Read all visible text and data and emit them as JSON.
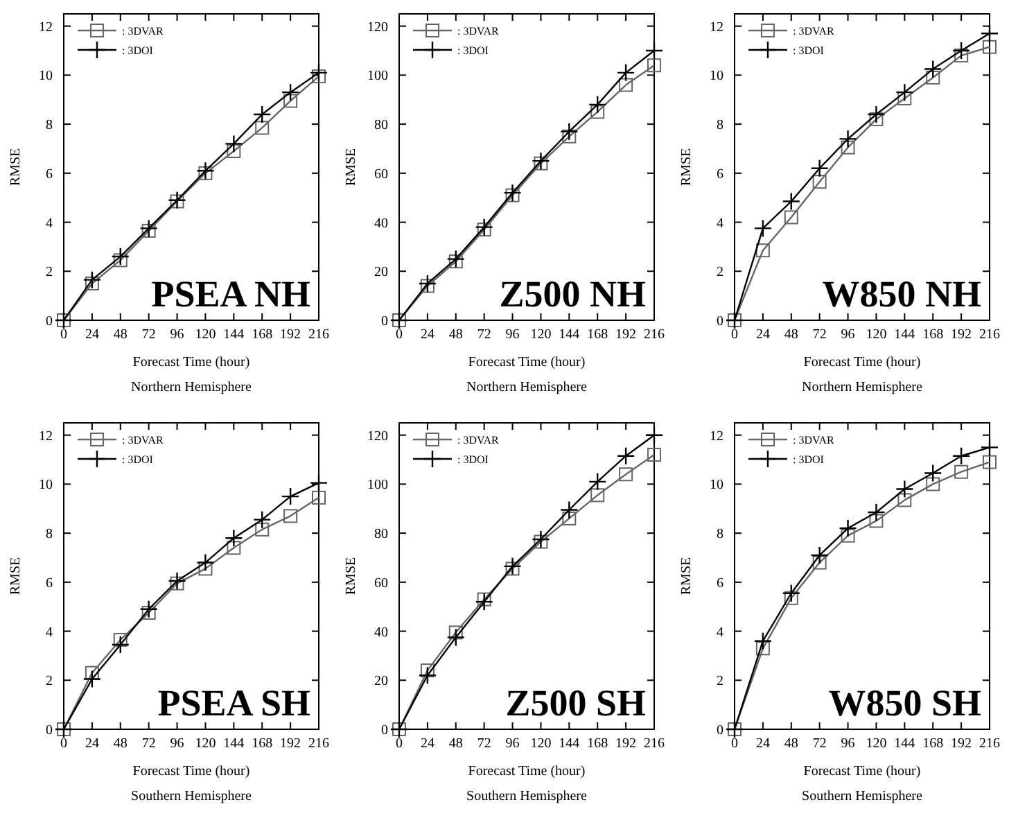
{
  "chart_data": [
    {
      "type": "line",
      "title": "PSEA NH",
      "xlabel": "Forecast Time (hour)",
      "ylabel": "RMSE",
      "annotations": [
        "Northern Hemisphere"
      ],
      "x": [
        0,
        24,
        48,
        72,
        96,
        120,
        144,
        168,
        192,
        216
      ],
      "xlim": [
        0,
        216
      ],
      "xticks": [
        0,
        24,
        48,
        72,
        96,
        120,
        144,
        168,
        192,
        216
      ],
      "ylim": [
        0,
        12.5
      ],
      "yticks": [
        0,
        2,
        4,
        6,
        8,
        10,
        12
      ],
      "grid": false,
      "legend": "top left",
      "line_style": "solid",
      "series": [
        {
          "name": ": 3DVAR",
          "color": "#666666",
          "marker": "square",
          "values": [
            0,
            1.5,
            2.45,
            3.65,
            4.85,
            6.0,
            6.9,
            7.85,
            8.95,
            9.95
          ]
        },
        {
          "name": ": 3DOI",
          "color": "#000000",
          "marker": "cross",
          "values": [
            0,
            1.65,
            2.6,
            3.75,
            4.9,
            6.1,
            7.2,
            8.4,
            9.3,
            10.1
          ]
        }
      ]
    },
    {
      "type": "line",
      "title": "Z500 NH",
      "xlabel": "Forecast Time (hour)",
      "ylabel": "RMSE",
      "annotations": [
        "Northern Hemisphere"
      ],
      "x": [
        0,
        24,
        48,
        72,
        96,
        120,
        144,
        168,
        192,
        216
      ],
      "xlim": [
        0,
        216
      ],
      "xticks": [
        0,
        24,
        48,
        72,
        96,
        120,
        144,
        168,
        192,
        216
      ],
      "ylim": [
        0,
        125
      ],
      "yticks": [
        0,
        20,
        40,
        60,
        80,
        100,
        120
      ],
      "grid": false,
      "legend": "top left",
      "line_style": "solid",
      "series": [
        {
          "name": ": 3DVAR",
          "color": "#666666",
          "marker": "square",
          "values": [
            0,
            14,
            24,
            37,
            51,
            64,
            75,
            85,
            96,
            104
          ]
        },
        {
          "name": ": 3DOI",
          "color": "#000000",
          "marker": "cross",
          "values": [
            0,
            15,
            25,
            38,
            52,
            65,
            77,
            88,
            101,
            110
          ]
        }
      ]
    },
    {
      "type": "line",
      "title": "W850 NH",
      "xlabel": "Forecast Time (hour)",
      "ylabel": "RMSE",
      "annotations": [
        "Northern Hemisphere"
      ],
      "x": [
        0,
        24,
        48,
        72,
        96,
        120,
        144,
        168,
        192,
        216
      ],
      "xlim": [
        0,
        216
      ],
      "xticks": [
        0,
        24,
        48,
        72,
        96,
        120,
        144,
        168,
        192,
        216
      ],
      "ylim": [
        0,
        12.5
      ],
      "yticks": [
        0,
        2,
        4,
        6,
        8,
        10,
        12
      ],
      "grid": false,
      "legend": "top left",
      "line_style": "solid",
      "series": [
        {
          "name": ": 3DVAR",
          "color": "#666666",
          "marker": "square",
          "values": [
            0,
            2.85,
            4.2,
            5.65,
            7.05,
            8.2,
            9.05,
            9.9,
            10.8,
            11.15
          ]
        },
        {
          "name": ": 3DOI",
          "color": "#000000",
          "marker": "cross",
          "values": [
            0,
            3.75,
            4.85,
            6.2,
            7.4,
            8.4,
            9.3,
            10.25,
            11.0,
            11.7
          ]
        }
      ]
    },
    {
      "type": "line",
      "title": "PSEA SH",
      "xlabel": "Forecast Time (hour)",
      "ylabel": "RMSE",
      "annotations": [
        "Southern Hemisphere"
      ],
      "x": [
        0,
        24,
        48,
        72,
        96,
        120,
        144,
        168,
        192,
        216
      ],
      "xlim": [
        0,
        216
      ],
      "xticks": [
        0,
        24,
        48,
        72,
        96,
        120,
        144,
        168,
        192,
        216
      ],
      "ylim": [
        0,
        12.5
      ],
      "yticks": [
        0,
        2,
        4,
        6,
        8,
        10,
        12
      ],
      "grid": false,
      "legend": "top left",
      "line_style": "solid",
      "series": [
        {
          "name": ": 3DVAR",
          "color": "#666666",
          "marker": "square",
          "values": [
            0,
            2.3,
            3.65,
            4.75,
            5.95,
            6.55,
            7.4,
            8.15,
            8.7,
            9.45
          ]
        },
        {
          "name": ": 3DOI",
          "color": "#000000",
          "marker": "cross",
          "values": [
            0,
            2.05,
            3.45,
            4.9,
            6.05,
            6.8,
            7.8,
            8.55,
            9.5,
            10.05
          ]
        }
      ]
    },
    {
      "type": "line",
      "title": "Z500 SH",
      "xlabel": "Forecast Time (hour)",
      "ylabel": "RMSE",
      "annotations": [
        "Southern Hemisphere"
      ],
      "x": [
        0,
        24,
        48,
        72,
        96,
        120,
        144,
        168,
        192,
        216
      ],
      "xlim": [
        0,
        216
      ],
      "xticks": [
        0,
        24,
        48,
        72,
        96,
        120,
        144,
        168,
        192,
        216
      ],
      "ylim": [
        0,
        125
      ],
      "yticks": [
        0,
        20,
        40,
        60,
        80,
        100,
        120
      ],
      "grid": false,
      "legend": "top left",
      "line_style": "solid",
      "series": [
        {
          "name": ": 3DVAR",
          "color": "#666666",
          "marker": "square",
          "values": [
            0,
            24,
            39.5,
            53,
            65.5,
            76.5,
            86,
            95.5,
            104,
            112
          ]
        },
        {
          "name": ": 3DOI",
          "color": "#000000",
          "marker": "cross",
          "values": [
            0,
            22,
            37.5,
            52,
            66.5,
            77.5,
            89.5,
            101,
            111.5,
            120
          ]
        }
      ]
    },
    {
      "type": "line",
      "title": "W850 SH",
      "xlabel": "Forecast Time (hour)",
      "ylabel": "RMSE",
      "annotations": [
        "Southern Hemisphere"
      ],
      "x": [
        0,
        24,
        48,
        72,
        96,
        120,
        144,
        168,
        192,
        216
      ],
      "xlim": [
        0,
        216
      ],
      "xticks": [
        0,
        24,
        48,
        72,
        96,
        120,
        144,
        168,
        192,
        216
      ],
      "ylim": [
        0,
        12.5
      ],
      "yticks": [
        0,
        2,
        4,
        6,
        8,
        10,
        12
      ],
      "grid": false,
      "legend": "top left",
      "line_style": "solid",
      "series": [
        {
          "name": ": 3DVAR",
          "color": "#666666",
          "marker": "square",
          "values": [
            0,
            3.3,
            5.35,
            6.8,
            7.9,
            8.5,
            9.35,
            10.0,
            10.5,
            10.9
          ]
        },
        {
          "name": ": 3DOI",
          "color": "#000000",
          "marker": "cross",
          "values": [
            0,
            3.6,
            5.55,
            7.1,
            8.2,
            8.85,
            9.8,
            10.45,
            11.15,
            11.5
          ]
        }
      ]
    }
  ]
}
